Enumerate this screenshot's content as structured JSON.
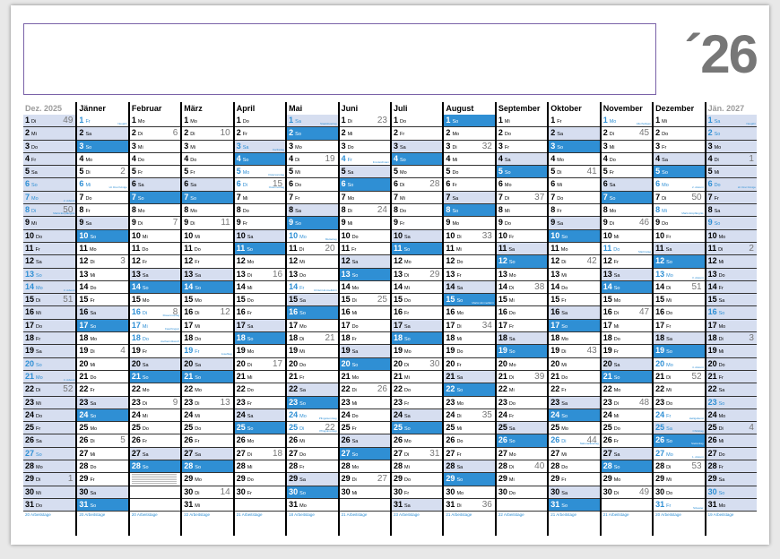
{
  "year_label": "´26",
  "colors": {
    "sunday": "#2f8fd4",
    "saturday": "#d6def0",
    "holiday_text": "#2f8fd4",
    "note_border": "#7a62a8"
  },
  "months": [
    {
      "header": "Dez. 2025",
      "start": 1,
      "days": 31,
      "edge": true,
      "footer": "20 Arbeitstage",
      "holidays": {
        "7": "2. Advent",
        "8": "Mariä Empfängnis",
        "14": "3. Advent",
        "21": "4. Advent"
      },
      "kw": {
        "1": "49",
        "8": "50",
        "15": "51",
        "22": "52",
        "29": "1"
      }
    },
    {
      "header": "Jänner",
      "start": 4,
      "days": 31,
      "footer": "20 Arbeitstage",
      "holidays": {
        "1": "Neujahr",
        "6": "Hl. Drei Könige"
      },
      "kw": {
        "5": "2",
        "12": "3",
        "19": "4",
        "26": "5"
      }
    },
    {
      "header": "Februar",
      "start": 0,
      "days": 28,
      "footer": "20 Arbeitstage",
      "holidays": {
        "16": "Rosenmontag",
        "17": "Faschingsd.",
        "18": "Aschermittwoch"
      },
      "kw": {
        "2": "6",
        "9": "7",
        "16": "8",
        "23": "9"
      }
    },
    {
      "header": "März",
      "start": 0,
      "days": 31,
      "footer": "22 Arbeitstage",
      "holidays": {
        "19": "Josefitag"
      },
      "kw": {
        "2": "10",
        "9": "11",
        "16": "12",
        "23": "13",
        "30": "14"
      }
    },
    {
      "header": "April",
      "start": 3,
      "days": 30,
      "footer": "21 Arbeitstage",
      "holidays": {
        "3": "Karfreitag",
        "5": "Ostersonntag",
        "6": "Ostermontag"
      },
      "kw": {
        "6": "15",
        "13": "16",
        "20": "17",
        "27": "18"
      }
    },
    {
      "header": "Mai",
      "start": 5,
      "days": 31,
      "footer": "18 Arbeitstage",
      "holidays": {
        "1": "Staatsfeiertag",
        "10": "Muttertag",
        "14": "Christi Himmelfahrt",
        "24": "Pfingstsonntag",
        "25": "Pfingstmontag"
      },
      "kw": {
        "4": "19",
        "11": "20",
        "18": "21",
        "25": "22"
      }
    },
    {
      "header": "Juni",
      "start": 1,
      "days": 30,
      "footer": "21 Arbeitstage",
      "holidays": {
        "4": "Fronleichnam"
      },
      "kw": {
        "1": "23",
        "8": "24",
        "15": "25",
        "22": "26",
        "29": "27"
      }
    },
    {
      "header": "Juli",
      "start": 3,
      "days": 31,
      "footer": "23 Arbeitstage",
      "holidays": {},
      "kw": {
        "6": "28",
        "13": "29",
        "20": "30",
        "27": "31"
      }
    },
    {
      "header": "August",
      "start": 6,
      "days": 31,
      "footer": "21 Arbeitstage",
      "holidays": {
        "15": "Mariä Himmelfahrt"
      },
      "kw": {
        "3": "32",
        "10": "33",
        "17": "34",
        "24": "35",
        "31": "36"
      }
    },
    {
      "header": "September",
      "start": 2,
      "days": 30,
      "footer": "22 Arbeitstage",
      "holidays": {},
      "kw": {
        "7": "37",
        "14": "38",
        "21": "39",
        "28": "40"
      }
    },
    {
      "header": "Oktober",
      "start": 4,
      "days": 31,
      "footer": "21 Arbeitstage",
      "holidays": {
        "26": "Nationalfeiertag"
      },
      "kw": {
        "5": "41",
        "12": "42",
        "19": "43",
        "26": "44"
      }
    },
    {
      "header": "November",
      "start": 0,
      "days": 30,
      "footer": "21 Arbeitstage",
      "holidays": {
        "1": "Allerheiligen",
        "11": "Martinstag"
      },
      "kw": {
        "2": "45",
        "9": "46",
        "16": "47",
        "23": "48",
        "30": "49"
      }
    },
    {
      "header": "Dezember",
      "start": 2,
      "days": 31,
      "footer": "20 Arbeitstage",
      "holidays": {
        "6": "2. Advent",
        "8": "Mariä Empfängnis",
        "13": "3. Advent",
        "20": "4. Advent",
        "24": "Heiligabend",
        "25": "Christtag",
        "26": "Stefanitag",
        "27": "1. Advent",
        "31": "Silvester"
      },
      "kw": {
        "7": "50",
        "14": "51",
        "21": "52",
        "28": "53"
      }
    },
    {
      "header": "Jän. 2027",
      "start": 5,
      "days": 31,
      "edge": true,
      "footer": "19 Arbeitstage",
      "holidays": {
        "1": "Neujahr",
        "6": "Hl. Drei Könige"
      },
      "kw": {
        "4": "1",
        "11": "2",
        "18": "3",
        "25": "4"
      }
    }
  ],
  "weekday_abbr": [
    "Mo",
    "Di",
    "Mi",
    "Do",
    "Fr",
    "Sa",
    "So"
  ]
}
